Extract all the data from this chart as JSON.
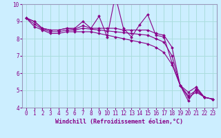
{
  "title": "",
  "xlabel": "Windchill (Refroidissement éolien,°C)",
  "ylabel": "",
  "background_color": "#cceeff",
  "grid_color": "#aadddd",
  "line_color": "#880088",
  "x_hours": [
    0,
    1,
    2,
    3,
    4,
    5,
    6,
    7,
    8,
    9,
    10,
    11,
    12,
    13,
    14,
    15,
    16,
    17,
    18,
    19,
    20,
    21,
    22,
    23
  ],
  "series": [
    [
      9.2,
      9.0,
      8.6,
      8.5,
      8.5,
      8.6,
      8.6,
      9.0,
      8.6,
      9.3,
      8.1,
      10.5,
      8.6,
      8.1,
      8.8,
      9.4,
      8.2,
      8.1,
      6.6,
      5.3,
      4.4,
      5.1,
      4.6,
      4.5
    ],
    [
      9.2,
      9.0,
      8.6,
      8.5,
      8.5,
      8.6,
      8.55,
      8.75,
      8.6,
      8.6,
      8.6,
      8.6,
      8.5,
      8.5,
      8.5,
      8.5,
      8.3,
      8.2,
      7.5,
      5.3,
      4.9,
      5.2,
      4.6,
      4.5
    ],
    [
      9.2,
      8.85,
      8.55,
      8.4,
      8.4,
      8.5,
      8.5,
      8.6,
      8.55,
      8.5,
      8.45,
      8.4,
      8.35,
      8.3,
      8.25,
      8.2,
      8.0,
      7.8,
      7.0,
      5.3,
      4.7,
      5.0,
      4.6,
      4.5
    ],
    [
      9.2,
      8.7,
      8.5,
      8.3,
      8.3,
      8.4,
      8.4,
      8.4,
      8.4,
      8.3,
      8.2,
      8.1,
      8.0,
      7.9,
      7.8,
      7.7,
      7.5,
      7.2,
      6.5,
      5.3,
      4.6,
      4.9,
      4.6,
      4.5
    ]
  ],
  "ylim": [
    4,
    10
  ],
  "yticks": [
    4,
    5,
    6,
    7,
    8,
    9,
    10
  ],
  "xticks": [
    0,
    1,
    2,
    3,
    4,
    5,
    6,
    7,
    8,
    9,
    10,
    11,
    12,
    13,
    14,
    15,
    16,
    17,
    18,
    19,
    20,
    21,
    22,
    23
  ],
  "tick_fontsize": 5.5,
  "label_fontsize": 6,
  "marker": "D",
  "markersize": 2.0,
  "linewidth": 0.8,
  "spine_color": "#9999bb",
  "label_color": "#880088"
}
